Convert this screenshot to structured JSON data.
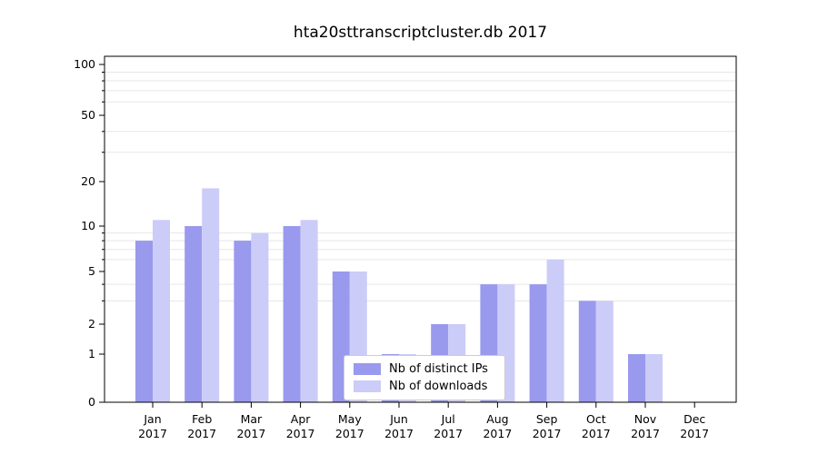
{
  "title": "hta20sttranscriptcluster.db 2017",
  "chart_data": {
    "type": "bar",
    "title": "hta20sttranscriptcluster.db 2017",
    "categories": [
      "Jan",
      "Feb",
      "Mar",
      "Apr",
      "May",
      "Jun",
      "Jul",
      "Aug",
      "Sep",
      "Oct",
      "Nov",
      "Dec"
    ],
    "year": "2017",
    "series": [
      {
        "name": "Nb of distinct IPs",
        "color": "#9999ee",
        "values": [
          8,
          10,
          8,
          10,
          5,
          1,
          2,
          4,
          4,
          3,
          1,
          0
        ]
      },
      {
        "name": "Nb of downloads",
        "color": "#ccccf8",
        "values": [
          11,
          18,
          9,
          11,
          5,
          1,
          2,
          4,
          6,
          3,
          1,
          0
        ]
      }
    ],
    "xlabel": "",
    "ylabel": "",
    "yscale": "log-like",
    "yticks": [
      100,
      50,
      20,
      10,
      5,
      2,
      1,
      0
    ],
    "minor_gridlines": [
      3,
      4,
      6,
      7,
      8,
      9,
      30,
      40,
      60,
      70,
      80,
      90
    ],
    "ylim": [
      0,
      115
    ],
    "grid": "horizontal-minor",
    "legend_position": "inside-bottom-center",
    "frame_color": "#000000",
    "grid_color": "#e7e7e7",
    "text_color": "#000000"
  }
}
